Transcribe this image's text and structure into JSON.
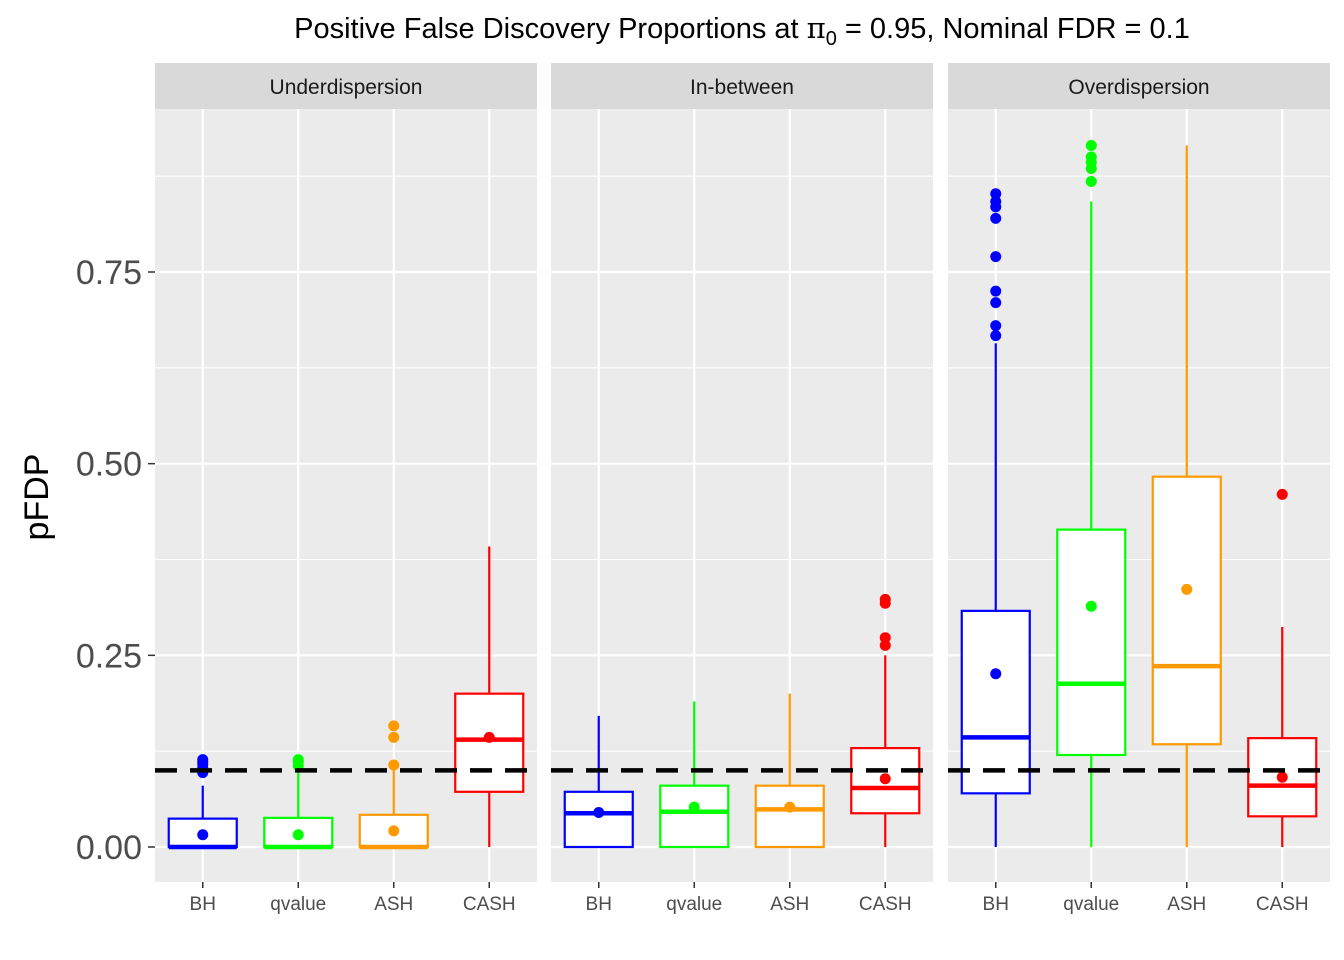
{
  "title": {
    "prefix": "Positive False Discovery Proportions at ",
    "pi_symbol": "π",
    "pi_subscript": "0",
    "suffix": " = 0.95, Nominal FDR = 0.1"
  },
  "chart_data": {
    "type": "boxplot",
    "ylabel": "pFDP",
    "xlabel": "",
    "ylim": [
      -0.045,
      0.97
    ],
    "yticks": [
      0.0,
      0.25,
      0.5,
      0.75
    ],
    "ytick_labels": [
      "0.00",
      "0.25",
      "0.50",
      "0.75"
    ],
    "categories": [
      "BH",
      "qvalue",
      "ASH",
      "CASH"
    ],
    "colors": {
      "BH": "#0000ff",
      "qvalue": "#00ff00",
      "ASH": "#ff9900",
      "CASH": "#ff0000"
    },
    "reference_line": {
      "y": 0.1,
      "style": "dashed",
      "color": "#000000"
    },
    "grid": true,
    "legend": "none",
    "panels": [
      {
        "label": "Underdispersion",
        "boxes": [
          {
            "method": "BH",
            "lower_whisker": 0.0,
            "q1": 0.0,
            "median": 0.0,
            "q3": 0.037,
            "upper_whisker": 0.08,
            "mean": 0.016,
            "outliers": [
              0.097,
              0.103,
              0.108,
              0.111,
              0.114
            ]
          },
          {
            "method": "qvalue",
            "lower_whisker": 0.0,
            "q1": 0.0,
            "median": 0.0,
            "q3": 0.038,
            "upper_whisker": 0.1,
            "mean": 0.016,
            "outliers": [
              0.106,
              0.111,
              0.114
            ]
          },
          {
            "method": "ASH",
            "lower_whisker": 0.0,
            "q1": 0.0,
            "median": 0.0,
            "q3": 0.042,
            "upper_whisker": 0.1,
            "mean": 0.021,
            "outliers": [
              0.107,
              0.143,
              0.158
            ]
          },
          {
            "method": "CASH",
            "lower_whisker": 0.0,
            "q1": 0.072,
            "median": 0.14,
            "q3": 0.2,
            "upper_whisker": 0.392,
            "mean": 0.143,
            "outliers": []
          }
        ]
      },
      {
        "label": "In-between",
        "boxes": [
          {
            "method": "BH",
            "lower_whisker": 0.0,
            "q1": 0.0,
            "median": 0.044,
            "q3": 0.072,
            "upper_whisker": 0.171,
            "mean": 0.045,
            "outliers": []
          },
          {
            "method": "qvalue",
            "lower_whisker": 0.0,
            "q1": 0.0,
            "median": 0.046,
            "q3": 0.08,
            "upper_whisker": 0.19,
            "mean": 0.052,
            "outliers": []
          },
          {
            "method": "ASH",
            "lower_whisker": 0.0,
            "q1": 0.0,
            "median": 0.049,
            "q3": 0.08,
            "upper_whisker": 0.2,
            "mean": 0.052,
            "outliers": []
          },
          {
            "method": "CASH",
            "lower_whisker": 0.0,
            "q1": 0.044,
            "median": 0.077,
            "q3": 0.129,
            "upper_whisker": 0.25,
            "mean": 0.089,
            "outliers": [
              0.263,
              0.273,
              0.318,
              0.323
            ]
          }
        ]
      },
      {
        "label": "Overdispersion",
        "boxes": [
          {
            "method": "BH",
            "lower_whisker": 0.0,
            "q1": 0.07,
            "median": 0.143,
            "q3": 0.308,
            "upper_whisker": 0.657,
            "mean": 0.226,
            "outliers": [
              0.667,
              0.68,
              0.71,
              0.725,
              0.77,
              0.82,
              0.835,
              0.842,
              0.852
            ]
          },
          {
            "method": "qvalue",
            "lower_whisker": 0.0,
            "q1": 0.12,
            "median": 0.213,
            "q3": 0.414,
            "upper_whisker": 0.842,
            "mean": 0.314,
            "outliers": [
              0.868,
              0.885,
              0.893,
              0.9,
              0.915
            ]
          },
          {
            "method": "ASH",
            "lower_whisker": 0.0,
            "q1": 0.134,
            "median": 0.236,
            "q3": 0.483,
            "upper_whisker": 0.915,
            "mean": 0.336,
            "outliers": []
          },
          {
            "method": "CASH",
            "lower_whisker": 0.0,
            "q1": 0.04,
            "median": 0.08,
            "q3": 0.142,
            "upper_whisker": 0.287,
            "mean": 0.091,
            "outliers": [
              0.46
            ]
          }
        ]
      }
    ]
  }
}
